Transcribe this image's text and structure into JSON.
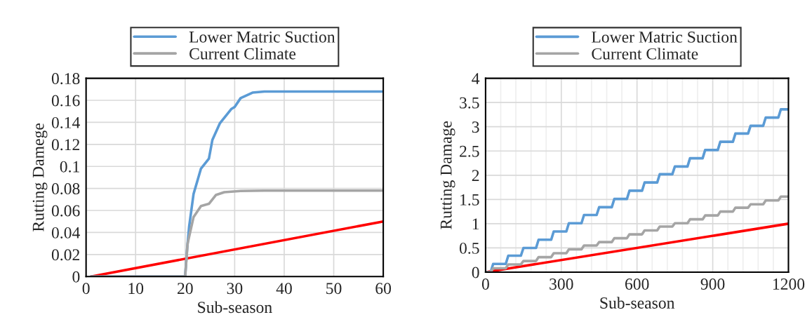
{
  "chart_data": [
    {
      "type": "line",
      "xlabel": "Sub-season",
      "ylabel": "Rutting Damege",
      "legend": "top",
      "grid": true,
      "xlim": [
        0,
        60
      ],
      "xticks": [
        0,
        10,
        20,
        30,
        40,
        50,
        60
      ],
      "ylim": [
        0,
        0.18
      ],
      "yticks": [
        0,
        0.02,
        0.04,
        0.06,
        0.08,
        0.1,
        0.12,
        0.14,
        0.16,
        0.18
      ],
      "series": [
        {
          "color": "#ff0000",
          "x": [
            1,
            60
          ],
          "values": [
            0,
            0.05
          ]
        },
        {
          "name": "Lower Matric Suction",
          "color": "#5b9bd5",
          "x": [
            1,
            19.6,
            20,
            20.4,
            20.8,
            21.7,
            23.2,
            24.8,
            25.5,
            27,
            29.3,
            30,
            31.2,
            33.6,
            36,
            60
          ],
          "values": [
            0,
            0,
            0,
            0.025,
            0.045,
            0.075,
            0.098,
            0.107,
            0.124,
            0.139,
            0.152,
            0.154,
            0.162,
            0.167,
            0.168,
            0.168
          ]
        },
        {
          "name": "Current Climate",
          "color": "#a5a5a5",
          "x": [
            1,
            19.6,
            20,
            20.5,
            21.7,
            23.2,
            24.8,
            26.2,
            27.9,
            31.2,
            36,
            60
          ],
          "values": [
            0,
            0,
            0,
            0.03,
            0.054,
            0.064,
            0.066,
            0.074,
            0.0766,
            0.0777,
            0.078,
            0.078
          ]
        }
      ]
    },
    {
      "type": "line",
      "xlabel": "Sub-season",
      "ylabel": "Rutting Damage",
      "legend": "top",
      "grid": true,
      "xlim": [
        0,
        1200
      ],
      "xticks": [
        0,
        {
          "value": 60,
          "label": null
        },
        {
          "value": 120,
          "label": null
        },
        {
          "value": 180,
          "label": null
        },
        {
          "value": 240,
          "label": null
        },
        300,
        {
          "value": 360,
          "label": null
        },
        {
          "value": 420,
          "label": null
        },
        {
          "value": 480,
          "label": null
        },
        {
          "value": 540,
          "label": null
        },
        600,
        {
          "value": 660,
          "label": null
        },
        {
          "value": 720,
          "label": null
        },
        {
          "value": 780,
          "label": null
        },
        {
          "value": 840,
          "label": null
        },
        900,
        {
          "value": 960,
          "label": null
        },
        {
          "value": 1020,
          "label": null
        },
        {
          "value": 1080,
          "label": null
        },
        {
          "value": 1140,
          "label": null
        },
        1200
      ],
      "ylim": [
        0,
        4
      ],
      "yticks": [
        0,
        0.5,
        1,
        1.5,
        2,
        2.5,
        3,
        3.5,
        4
      ],
      "series": [
        {
          "color": "#ff0000",
          "x": [
            0,
            1200
          ],
          "values": [
            0,
            1.0
          ]
        },
        {
          "name": "Lower Matric Suction",
          "color": "#5b9bd5",
          "x": [
            0,
            20,
            30,
            80,
            90,
            140,
            150,
            200,
            210,
            260,
            270,
            320,
            330,
            380,
            390,
            440,
            450,
            500,
            510,
            560,
            570,
            620,
            630,
            680,
            690,
            740,
            750,
            800,
            810,
            860,
            870,
            920,
            930,
            980,
            990,
            1040,
            1050,
            1100,
            1110,
            1160,
            1170,
            1200
          ],
          "values": [
            0,
            0,
            0.17,
            0.17,
            0.34,
            0.34,
            0.5,
            0.5,
            0.67,
            0.67,
            0.84,
            0.84,
            1.01,
            1.01,
            1.18,
            1.18,
            1.34,
            1.34,
            1.51,
            1.51,
            1.68,
            1.68,
            1.85,
            1.85,
            2.02,
            2.02,
            2.18,
            2.18,
            2.35,
            2.35,
            2.52,
            2.52,
            2.69,
            2.69,
            2.86,
            2.86,
            3.02,
            3.02,
            3.19,
            3.19,
            3.36,
            3.36
          ]
        },
        {
          "name": "Current Climate",
          "color": "#a5a5a5",
          "x": [
            0,
            20,
            30,
            80,
            90,
            140,
            150,
            200,
            210,
            260,
            270,
            320,
            330,
            380,
            390,
            440,
            450,
            500,
            510,
            560,
            570,
            620,
            630,
            680,
            690,
            740,
            750,
            800,
            810,
            860,
            870,
            920,
            930,
            980,
            990,
            1040,
            1050,
            1100,
            1110,
            1160,
            1170,
            1200
          ],
          "values": [
            0,
            0,
            0.08,
            0.08,
            0.16,
            0.16,
            0.23,
            0.23,
            0.31,
            0.31,
            0.39,
            0.39,
            0.47,
            0.47,
            0.55,
            0.55,
            0.62,
            0.62,
            0.7,
            0.7,
            0.78,
            0.78,
            0.86,
            0.86,
            0.94,
            0.94,
            1.01,
            1.01,
            1.09,
            1.09,
            1.17,
            1.17,
            1.25,
            1.25,
            1.33,
            1.33,
            1.4,
            1.4,
            1.48,
            1.48,
            1.56,
            1.56
          ]
        }
      ]
    }
  ]
}
